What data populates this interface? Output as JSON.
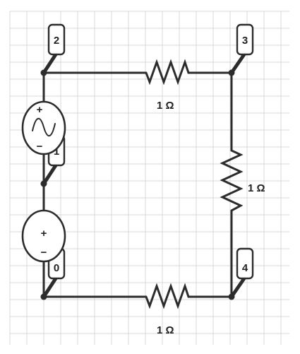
{
  "circuit": {
    "nodes": [
      {
        "id": "n2",
        "label": "2"
      },
      {
        "id": "n3",
        "label": "3"
      },
      {
        "id": "n1",
        "label": "1"
      },
      {
        "id": "n0",
        "label": "0"
      },
      {
        "id": "n4",
        "label": "4"
      }
    ],
    "resistors": [
      {
        "id": "r-top",
        "label": "1 Ω"
      },
      {
        "id": "r-right",
        "label": "1 Ω"
      },
      {
        "id": "r-bottom",
        "label": "1 Ω"
      }
    ],
    "sources": [
      {
        "id": "ac-source",
        "kind": "ac",
        "plus": "+",
        "minus": "−"
      },
      {
        "id": "dc-source",
        "kind": "dc",
        "plus": "+",
        "minus": "−"
      }
    ]
  },
  "style": {
    "wire_color": "#2c2c2c",
    "grid_color": "#d9d9d9",
    "background": "#ffffff"
  }
}
